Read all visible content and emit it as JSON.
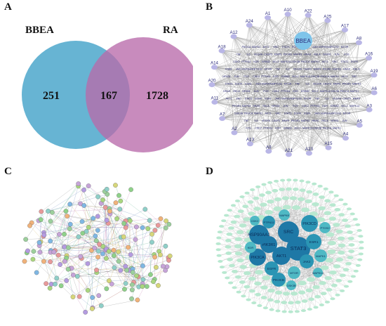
{
  "panels": {
    "A": {
      "label": "A",
      "set_left": "BBEA",
      "set_right": "RA",
      "only_left": "251",
      "intersection": "167",
      "only_right": "1728",
      "color_left": "#5aaecf",
      "color_right": "#b86aab"
    },
    "B": {
      "label": "B",
      "center_node": "BBEA",
      "ring_nodes": [
        "A1",
        "A10",
        "A22",
        "A25",
        "A17",
        "A8",
        "A16",
        "A19",
        "A6",
        "A3",
        "A5",
        "A4",
        "A15",
        "A23",
        "A21",
        "A9",
        "A13",
        "A2",
        "A7",
        "A11",
        "A20",
        "A14",
        "A18",
        "A12",
        "A24"
      ],
      "inner_genes": [
        "PIK3CA",
        "MAPK1",
        "AKT1",
        "SRC",
        "STAT3",
        "EGFR",
        "ESR1",
        "JAK2",
        "HSP90AA1",
        "PTGS2",
        "MTOR",
        "TNF",
        "IL6",
        "VEGFA",
        "CASP3",
        "MMP9",
        "PIK3R1",
        "MAPK3",
        "HRAS",
        "RELA",
        "NFKB1",
        "JUN",
        "FOS",
        "CDK2",
        "PTPN11",
        "KDR",
        "ERBB2",
        "BCL2",
        "MAPK14",
        "GSK3B"
      ],
      "color_center": "#7ec4ea",
      "color_ring": "#b9b6e6"
    },
    "C": {
      "label": "C"
    },
    "D": {
      "label": "D",
      "hubs": [
        "STAT3",
        "SRC",
        "AKT1",
        "PIK3R1",
        "HSP90AA1",
        "PIK3CA",
        "PIK3CD",
        "ESR1",
        "JAK2",
        "EGFR",
        "PIK3CB",
        "PTPN11",
        "MAPK1",
        "MTOR",
        "PTGS2",
        "MAPK8",
        "KDR",
        "GSK3B",
        "MAPK14",
        "CDK2"
      ],
      "color_hub": "#1e78a6",
      "color_mid": "#4fb9c4",
      "color_outer": "#b8e8d0"
    }
  }
}
